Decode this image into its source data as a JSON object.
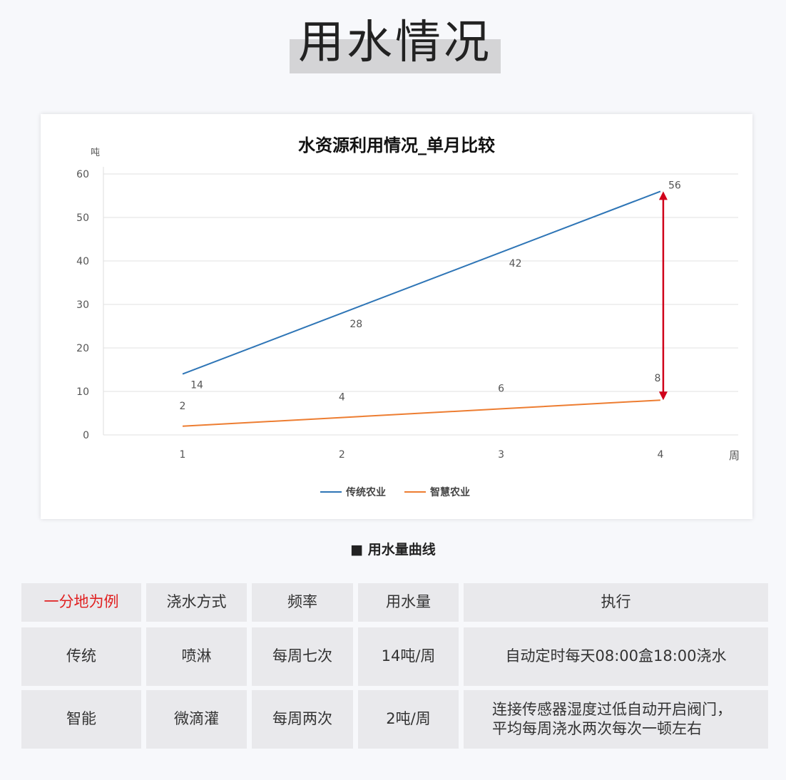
{
  "title": "用水情况",
  "chart_data": {
    "type": "line",
    "title": "水资源利用情况_单月比较",
    "xlabel": "周",
    "ylabel": "吨",
    "categories": [
      "1",
      "2",
      "3",
      "4"
    ],
    "ylim": [
      0,
      60
    ],
    "yticks": [
      "0",
      "10",
      "20",
      "30",
      "40",
      "50",
      "60"
    ],
    "grid": true,
    "legend": "bottom",
    "series": [
      {
        "name": "传统农业",
        "values": [
          14,
          28,
          42,
          56
        ],
        "color": "#2e75b6"
      },
      {
        "name": "智慧农业",
        "values": [
          2,
          4,
          6,
          8
        ],
        "color": "#ed7d31"
      }
    ],
    "annotation": {
      "type": "double-arrow",
      "x": "4",
      "from": 8,
      "to": 56,
      "color": "#d0021b"
    }
  },
  "caption": "■ 用水量曲线",
  "table": {
    "headers": [
      "一分地为例",
      "浇水方式",
      "频率",
      "用水量",
      "执行"
    ],
    "rows": [
      [
        "传统",
        "喷淋",
        "每周七次",
        "14吨/周",
        "自动定时每天08:00盒18:00浇水"
      ],
      [
        "智能",
        "微滴灌",
        "每周两次",
        "2吨/周",
        "连接传感器湿度过低自动开启阀门，平均每周浇水两次每次一顿左右"
      ]
    ]
  }
}
